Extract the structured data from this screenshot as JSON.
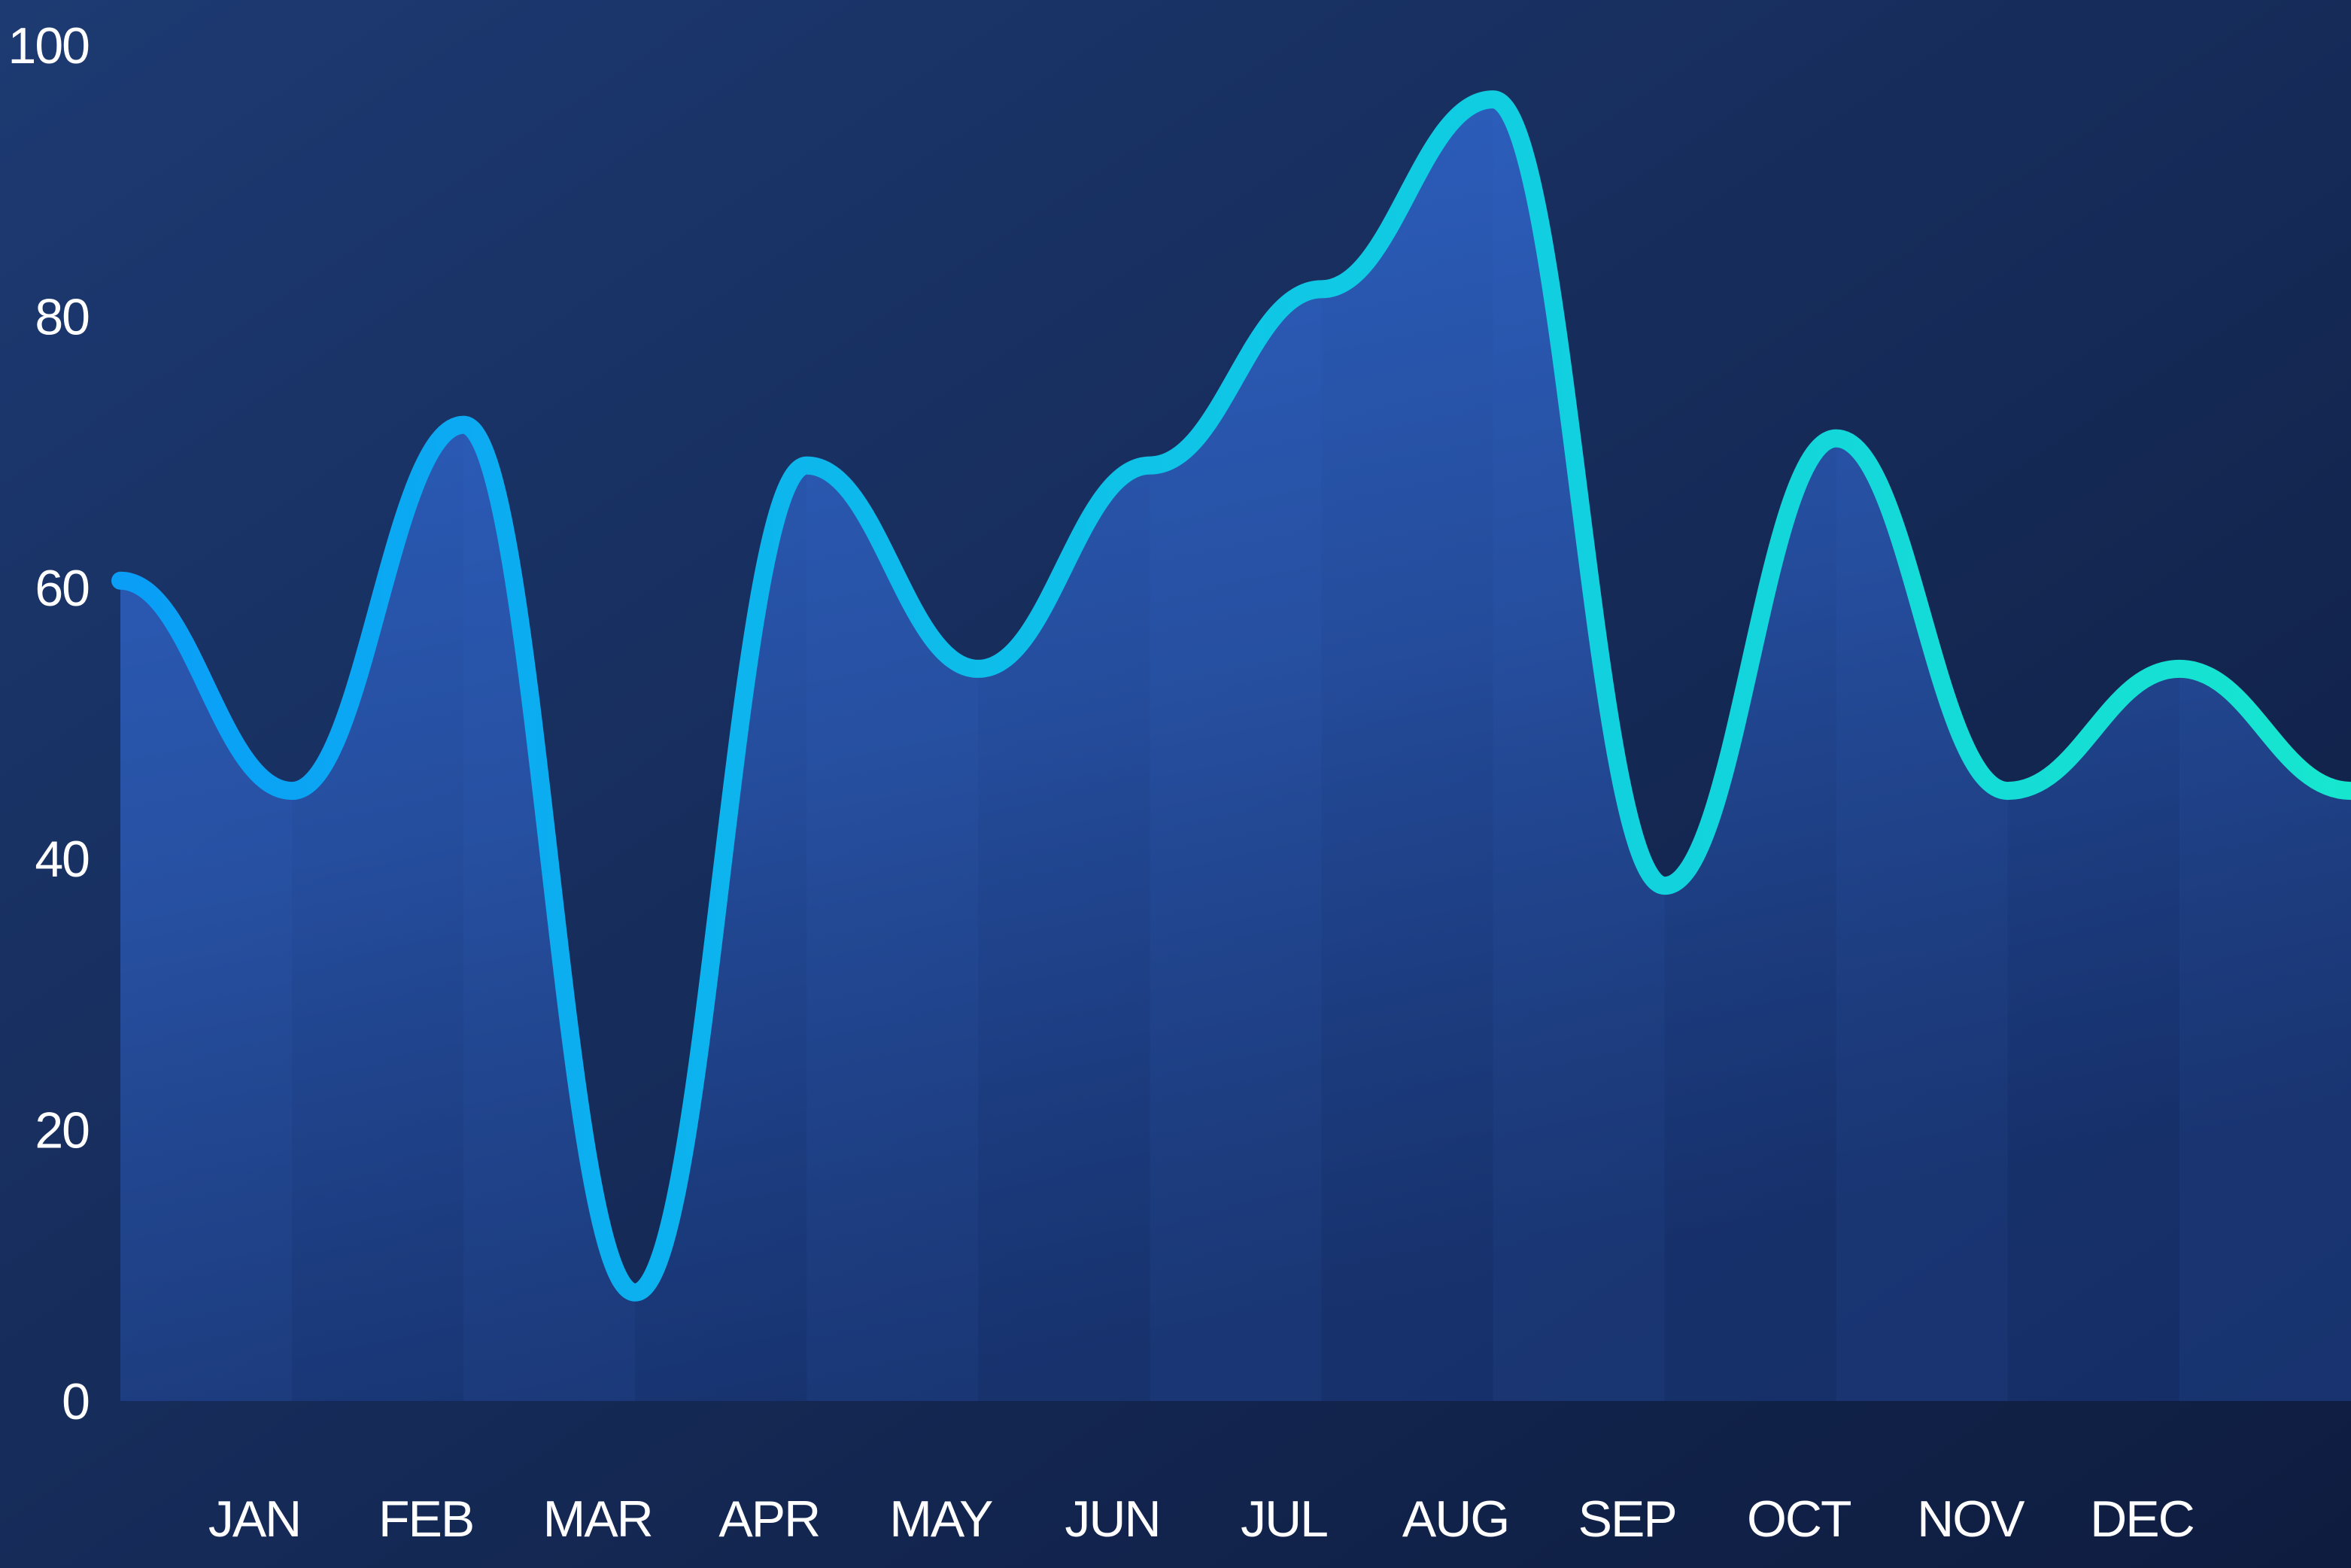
{
  "chart_data": {
    "type": "area",
    "title": "",
    "xlabel": "",
    "ylabel": "",
    "categories": [
      "JAN",
      "FEB",
      "MAR",
      "APR",
      "MAY",
      "JUN",
      "JUL",
      "AUG",
      "SEP",
      "OCT",
      "NOV",
      "DEC"
    ],
    "y_ticks": [
      "0",
      "20",
      "40",
      "60",
      "80",
      "100"
    ],
    "ylim": [
      0,
      100
    ],
    "x_range": [
      0,
      13
    ],
    "series": [
      {
        "x": [
          0,
          1,
          2,
          3,
          4,
          5,
          6,
          7,
          8,
          9,
          10,
          11,
          12,
          13
        ],
        "values": [
          60.5,
          45,
          72,
          8,
          69,
          54,
          69,
          82,
          96,
          38,
          71,
          45,
          54,
          45
        ]
      }
    ],
    "grid": false,
    "legend": "none",
    "colors": {
      "background_top_left": "#1d3a72",
      "background_bottom_right": "#0e1c3f",
      "area_fill": "#3068d0",
      "line_start": "#0a9ef7",
      "line_end": "#17e6cf",
      "text": "#ffffff"
    }
  }
}
